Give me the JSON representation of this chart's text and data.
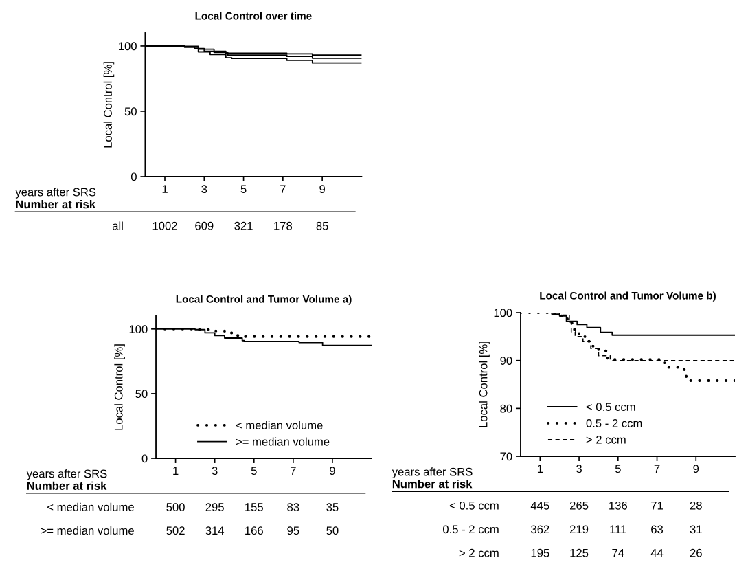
{
  "chart_data": [
    {
      "type": "step",
      "title": "Local Control over time",
      "xlabel": "years after SRS",
      "ylabel": "Local Control [%]",
      "xlim": [
        0,
        11
      ],
      "xticks": [
        1,
        3,
        5,
        7,
        9
      ],
      "ylim": [
        0,
        110
      ],
      "yticks": [
        0,
        50,
        100
      ],
      "legend": false,
      "series": [
        {
          "color": "#000000",
          "line_style": "solid",
          "x": [
            0,
            2,
            2.7,
            3.5,
            4.1,
            7.2,
            8.5,
            11
          ],
          "values": [
            100,
            99.7,
            97.5,
            96,
            94.5,
            94,
            93,
            93
          ]
        },
        {
          "color": "#000000",
          "line_style": "solid",
          "x": [
            0,
            2,
            2.5,
            3,
            3.5,
            4.2,
            7.2,
            8.5,
            11
          ],
          "values": [
            100,
            99.5,
            98,
            96,
            95,
            93,
            92,
            90.6,
            90.6
          ]
        },
        {
          "color": "#000000",
          "line_style": "solid",
          "x": [
            0,
            2,
            2.7,
            3.3,
            4.1,
            4.4,
            7.2,
            8.5,
            11
          ],
          "values": [
            100,
            99,
            95.5,
            93.5,
            91,
            90.5,
            89,
            87,
            87
          ]
        }
      ],
      "annotations": [
        "Number at risk",
        "all",
        "1002",
        "609",
        "321",
        "178",
        "85"
      ]
    },
    {
      "type": "step",
      "title": "Local Control and Tumor Volume a)",
      "xlabel": "years after SRS",
      "ylabel": "Local Control [%]",
      "xlim": [
        0,
        11
      ],
      "xticks": [
        1,
        3,
        5,
        7,
        9
      ],
      "ylim": [
        0,
        110
      ],
      "yticks": [
        0,
        50,
        100
      ],
      "legend": "bottom",
      "series": [
        {
          "name": "< median volume",
          "color": "#000000",
          "line_style": "dotted",
          "x": [
            0,
            2.2,
            2.8,
            3.5,
            4.0,
            4.5,
            11
          ],
          "values": [
            100,
            99.5,
            98.5,
            97,
            95,
            94.2,
            94.2
          ]
        },
        {
          "name": ">= median volume",
          "color": "#000000",
          "line_style": "solid",
          "x": [
            0,
            2,
            2.5,
            3,
            3.5,
            4.4,
            4.5,
            7.3,
            8.5,
            11
          ],
          "values": [
            100,
            99.5,
            97,
            95,
            93,
            91,
            90.4,
            89.5,
            87.4,
            87.4
          ]
        }
      ],
      "annotations": [
        "Number at risk",
        "< median volume",
        "500",
        "295",
        "155",
        "83",
        "35",
        ">= median volume",
        "502",
        "314",
        "166",
        "95",
        "50"
      ]
    },
    {
      "type": "step",
      "title": "Local Control and Tumor Volume b)",
      "xlabel": "years after SRS",
      "ylabel": "Local Control [%]",
      "xlim": [
        0,
        11
      ],
      "xticks": [
        1,
        3,
        5,
        7,
        9
      ],
      "ylim": [
        70,
        100
      ],
      "yticks": [
        70,
        80,
        90,
        100
      ],
      "legend": "bottom left",
      "series": [
        {
          "name": "< 0.5 ccm",
          "color": "#000000",
          "line_style": "solid",
          "x": [
            0,
            1.6,
            2.0,
            2.35,
            2.9,
            3.4,
            4.1,
            4.7,
            11
          ],
          "values": [
            100,
            99.7,
            99.3,
            98.2,
            97.5,
            96.9,
            95.9,
            95.3,
            95.3
          ]
        },
        {
          "name": "0.5 - 2 ccm",
          "color": "#000000",
          "line_style": "dotted",
          "x": [
            0,
            1.6,
            2.1,
            2.4,
            2.7,
            3.0,
            3.3,
            3.6,
            4.0,
            4.4,
            4.6,
            7.0,
            7.2,
            7.6,
            8.4,
            8.5,
            11
          ],
          "values": [
            100,
            99.7,
            99.2,
            97.8,
            96.5,
            95,
            94,
            93,
            92,
            90.5,
            90.2,
            90.2,
            89.5,
            88.6,
            87.8,
            85.8,
            85.8
          ]
        },
        {
          "name": "> 2 ccm",
          "color": "#000000",
          "line_style": "dashed",
          "x": [
            0,
            2.0,
            2.5,
            2.6,
            2.8,
            3.2,
            3.6,
            4.0,
            4.6,
            11
          ],
          "values": [
            100,
            99.5,
            98,
            96,
            95,
            94,
            92.5,
            91,
            90,
            90
          ]
        }
      ],
      "annotations": [
        "Number at risk",
        "< 0.5 ccm",
        "445",
        "265",
        "136",
        "71",
        "28",
        "0.5 - 2 ccm",
        "362",
        "219",
        "111",
        "63",
        "31",
        "> 2 ccm",
        "195",
        "125",
        "74",
        "44",
        "26"
      ]
    }
  ]
}
